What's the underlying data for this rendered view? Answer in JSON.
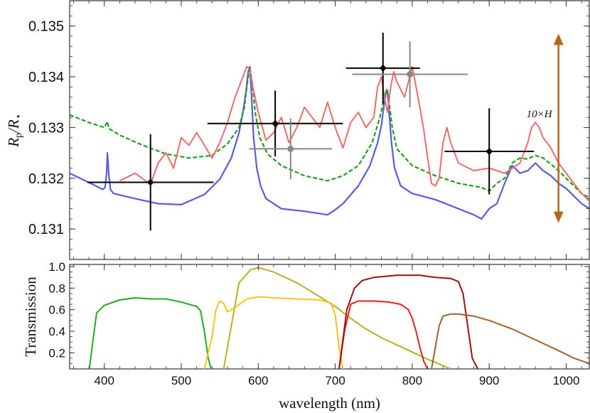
{
  "chart_data": [
    {
      "type": "line",
      "xlabel": "",
      "ylabel": "R_p/R_*",
      "ylabel_parts": {
        "main": "R",
        "sub1": "p",
        "slash": "/R",
        "sub2": "⋆"
      },
      "xlim": [
        355,
        1030
      ],
      "ylim": [
        0.1304,
        0.1355
      ],
      "yticks": [
        0.131,
        0.132,
        0.133,
        0.134,
        0.135
      ],
      "yticklabels": [
        "0.131",
        "0.132",
        "0.133",
        "0.134",
        "0.135"
      ],
      "xticks": [
        400,
        500,
        600,
        700,
        800,
        900,
        1000
      ],
      "grid": false,
      "colors": {
        "model_a": "#f26a6a",
        "model_b": "#5a5ae6",
        "model_c": "#1fa01f",
        "measurement": "#000000",
        "alt_measurement": "#888888",
        "scale_arrow": "#b8651b"
      },
      "annotations": [
        {
          "text": "10×H",
          "x": 965,
          "y": 0.1332
        }
      ],
      "scale_arrow": {
        "x": 990,
        "y_low": 0.13112,
        "y_high": 0.13485
      },
      "series": [
        {
          "key": "model_b",
          "style": "solid",
          "x": [
            355,
            385,
            398,
            401,
            403,
            404,
            406,
            408,
            412,
            440,
            470,
            500,
            530,
            550,
            565,
            575,
            580,
            584,
            587,
            589,
            591,
            594,
            598,
            603,
            610,
            630,
            660,
            690,
            700,
            710,
            730,
            745,
            755,
            760,
            763,
            766,
            768,
            770,
            773,
            777,
            785,
            800,
            830,
            860,
            880,
            890,
            900,
            910,
            920,
            930,
            940,
            950,
            960,
            970,
            980,
            990,
            1000,
            1010,
            1020,
            1030
          ],
          "y": [
            0.1321,
            0.13188,
            0.13178,
            0.13182,
            0.1321,
            0.1325,
            0.13205,
            0.13178,
            0.1317,
            0.1316,
            0.1315,
            0.13148,
            0.13168,
            0.13198,
            0.1324,
            0.1329,
            0.1333,
            0.1337,
            0.1341,
            0.1342,
            0.1337,
            0.1328,
            0.1322,
            0.13185,
            0.1316,
            0.1314,
            0.13135,
            0.13128,
            0.13138,
            0.1315,
            0.13185,
            0.13225,
            0.1327,
            0.13305,
            0.1334,
            0.1337,
            0.13372,
            0.1333,
            0.1327,
            0.1322,
            0.13185,
            0.1317,
            0.13158,
            0.1314,
            0.13128,
            0.1312,
            0.1314,
            0.1315,
            0.1319,
            0.13225,
            0.1321,
            0.13215,
            0.1323,
            0.13215,
            0.13205,
            0.1319,
            0.1318,
            0.13165,
            0.1315,
            0.1314
          ]
        },
        {
          "key": "model_c",
          "style": "dashed",
          "x": [
            355,
            380,
            400,
            404,
            406,
            420,
            450,
            480,
            510,
            540,
            560,
            575,
            582,
            586,
            589,
            592,
            596,
            602,
            612,
            630,
            660,
            690,
            710,
            730,
            748,
            758,
            764,
            767,
            770,
            774,
            780,
            800,
            830,
            860,
            890,
            900,
            910,
            920,
            930,
            940,
            950,
            960,
            970,
            980,
            990,
            1000,
            1010,
            1020,
            1030
          ],
          "y": [
            0.13325,
            0.1331,
            0.133,
            0.13312,
            0.13298,
            0.13285,
            0.13265,
            0.13248,
            0.1324,
            0.13245,
            0.13268,
            0.133,
            0.1334,
            0.1339,
            0.1342,
            0.1339,
            0.1333,
            0.1328,
            0.13248,
            0.13225,
            0.13205,
            0.13195,
            0.13205,
            0.13225,
            0.1327,
            0.1332,
            0.1336,
            0.13375,
            0.1335,
            0.133,
            0.13258,
            0.13225,
            0.13205,
            0.1319,
            0.13182,
            0.13175,
            0.1319,
            0.132,
            0.1323,
            0.1324,
            0.13238,
            0.13245,
            0.1324,
            0.13228,
            0.13215,
            0.132,
            0.13185,
            0.1317,
            0.13162
          ]
        },
        {
          "key": "model_a",
          "style": "solid",
          "x": [
            420,
            440,
            460,
            470,
            480,
            490,
            500,
            510,
            520,
            530,
            540,
            550,
            560,
            570,
            580,
            585,
            589,
            593,
            600,
            610,
            620,
            630,
            640,
            650,
            660,
            670,
            680,
            690,
            700,
            710,
            720,
            730,
            740,
            750,
            755,
            760,
            764,
            768,
            772,
            776,
            780,
            790,
            800,
            805,
            810,
            815,
            820,
            825,
            830,
            835,
            840,
            845,
            850,
            860,
            880,
            900,
            920,
            940,
            950,
            955,
            960,
            965,
            970,
            980,
            990,
            1000,
            1010,
            1020,
            1030
          ],
          "y": [
            0.13195,
            0.1321,
            0.13188,
            0.1323,
            0.1325,
            0.1322,
            0.1328,
            0.13265,
            0.1329,
            0.13265,
            0.1324,
            0.1327,
            0.1331,
            0.1336,
            0.134,
            0.1342,
            0.13415,
            0.1338,
            0.1333,
            0.13275,
            0.1329,
            0.1332,
            0.1327,
            0.133,
            0.1334,
            0.1332,
            0.133,
            0.1335,
            0.133,
            0.1326,
            0.1331,
            0.1333,
            0.133,
            0.1332,
            0.1338,
            0.134,
            0.1336,
            0.1333,
            0.1338,
            0.1341,
            0.1339,
            0.1336,
            0.1342,
            0.1338,
            0.1334,
            0.13295,
            0.1324,
            0.1319,
            0.13185,
            0.132,
            0.1327,
            0.133,
            0.1327,
            0.1323,
            0.13215,
            0.1322,
            0.1321,
            0.1323,
            0.1327,
            0.133,
            0.1331,
            0.133,
            0.1328,
            0.1326,
            0.1323,
            0.1321,
            0.1319,
            0.1317,
            0.13155
          ]
        }
      ],
      "measurements": [
        {
          "x": 460,
          "xerr": 82,
          "y": 0.13192,
          "yerr": 0.00095,
          "color": "#000000"
        },
        {
          "x": 622,
          "xerr": 88,
          "y": 0.13308,
          "yerr": 0.00065,
          "color": "#000000"
        },
        {
          "x": 762,
          "xerr": 48,
          "y": 0.13417,
          "yerr": 0.0007,
          "color": "#000000"
        },
        {
          "x": 900,
          "xerr": 58,
          "y": 0.13253,
          "yerr": 0.00085,
          "color": "#000000"
        },
        {
          "x": 642,
          "xerr": 54,
          "y": 0.13258,
          "yerr": 0.0006,
          "color": "#888888"
        },
        {
          "x": 797,
          "xerr": 75,
          "y": 0.13405,
          "yerr": 0.00065,
          "color": "#888888"
        }
      ]
    },
    {
      "type": "line",
      "xlabel": "wavelength (nm)",
      "ylabel": "Transmission",
      "xlim": [
        355,
        1030
      ],
      "ylim": [
        0.05,
        1.02
      ],
      "yticks": [
        0.2,
        0.4,
        0.6,
        0.8,
        1.0
      ],
      "yticklabels": [
        "0.2",
        "0.4",
        "0.6",
        "0.8",
        "1.0"
      ],
      "xticks": [
        400,
        500,
        600,
        700,
        800,
        900,
        1000
      ],
      "xticklabels": [
        "400",
        "500",
        "600",
        "700",
        "800",
        "900",
        "1000"
      ],
      "grid": false,
      "series": [
        {
          "color": "#22aa22",
          "x": [
            380,
            385,
            390,
            400,
            420,
            440,
            460,
            480,
            500,
            510,
            520,
            525,
            530,
            535,
            540
          ],
          "y": [
            0.02,
            0.3,
            0.57,
            0.64,
            0.69,
            0.71,
            0.7,
            0.7,
            0.67,
            0.65,
            0.63,
            0.59,
            0.4,
            0.15,
            0.02
          ]
        },
        {
          "color": "#b8b020",
          "x": [
            555,
            565,
            575,
            590,
            600,
            620,
            650,
            680,
            700,
            720,
            740,
            760,
            790,
            820,
            850
          ],
          "y": [
            0.05,
            0.45,
            0.85,
            0.97,
            0.99,
            0.95,
            0.85,
            0.72,
            0.63,
            0.52,
            0.42,
            0.34,
            0.24,
            0.14,
            0.05
          ]
        },
        {
          "color": "#ffc21a",
          "x": [
            530,
            540,
            545,
            550,
            555,
            560,
            570,
            585,
            600,
            620,
            650,
            680,
            695,
            700,
            705,
            710
          ],
          "y": [
            0.05,
            0.35,
            0.6,
            0.68,
            0.66,
            0.58,
            0.62,
            0.7,
            0.72,
            0.71,
            0.7,
            0.69,
            0.66,
            0.55,
            0.25,
            0.05
          ]
        },
        {
          "color": "#ee1c1c",
          "x": [
            705,
            712,
            720,
            730,
            750,
            770,
            785,
            795,
            800,
            805,
            810,
            815,
            820
          ],
          "y": [
            0.05,
            0.4,
            0.65,
            0.68,
            0.68,
            0.67,
            0.65,
            0.6,
            0.52,
            0.4,
            0.25,
            0.12,
            0.05
          ]
        },
        {
          "color": "#a01010",
          "x": [
            705,
            715,
            725,
            735,
            750,
            780,
            810,
            830,
            850,
            860,
            866,
            872,
            878,
            885
          ],
          "y": [
            0.05,
            0.6,
            0.8,
            0.87,
            0.9,
            0.92,
            0.92,
            0.9,
            0.89,
            0.86,
            0.75,
            0.45,
            0.15,
            0.05
          ]
        },
        {
          "color": "#a0622a",
          "x": [
            825,
            830,
            835,
            840,
            850,
            860,
            880,
            900,
            930,
            960,
            990,
            1010,
            1030
          ],
          "y": [
            0.05,
            0.25,
            0.45,
            0.54,
            0.56,
            0.56,
            0.54,
            0.5,
            0.42,
            0.32,
            0.22,
            0.15,
            0.1
          ]
        }
      ]
    }
  ]
}
